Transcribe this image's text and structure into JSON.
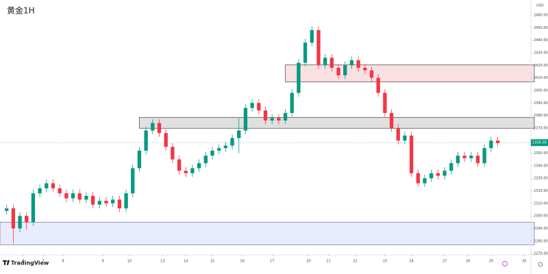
{
  "chart_data": {
    "type": "candlestick",
    "title": "黄金1H",
    "y_unit": "USD",
    "brand": "TradingView",
    "up_color": "#089981",
    "down_color": "#f23645",
    "grid": false,
    "xlim": [
      -1,
      79
    ],
    "ylim": [
      2269,
      2472
    ],
    "xticks": [
      {
        "value": 2.5,
        "label": "6"
      },
      {
        "value": 5.5,
        "label": "7"
      },
      {
        "value": 8.5,
        "label": "8"
      },
      {
        "value": 14.5,
        "label": "9"
      },
      {
        "value": 18.5,
        "label": "10"
      },
      {
        "value": 23.5,
        "label": "13"
      },
      {
        "value": 27,
        "label": "14"
      },
      {
        "value": 31,
        "label": "15"
      },
      {
        "value": 35.5,
        "label": "16"
      },
      {
        "value": 40,
        "label": "17"
      },
      {
        "value": 45.5,
        "label": "20"
      },
      {
        "value": 48.5,
        "label": "21"
      },
      {
        "value": 52.5,
        "label": "22"
      },
      {
        "value": 57,
        "label": "23"
      },
      {
        "value": 61,
        "label": "24"
      },
      {
        "value": 66,
        "label": "27"
      },
      {
        "value": 69.5,
        "label": "28"
      },
      {
        "value": 73,
        "label": "29"
      },
      {
        "value": 78,
        "label": "30"
      }
    ],
    "yticks": [
      {
        "value": 2270,
        "label": "2270.00"
      },
      {
        "value": 2280,
        "label": "2280.00"
      },
      {
        "value": 2290,
        "label": "2290.00"
      },
      {
        "value": 2300,
        "label": "2300.00"
      },
      {
        "value": 2310,
        "label": "2310.00"
      },
      {
        "value": 2320,
        "label": "2320.00"
      },
      {
        "value": 2330,
        "label": "2330.00"
      },
      {
        "value": 2340,
        "label": "2340.00"
      },
      {
        "value": 2350,
        "label": "2350.00"
      },
      {
        "value": 2370,
        "label": "2370.00"
      },
      {
        "value": 2380,
        "label": "2380.00"
      },
      {
        "value": 2390,
        "label": "2390.00"
      },
      {
        "value": 2400,
        "label": "2400.00"
      },
      {
        "value": 2410,
        "label": "2410.00"
      },
      {
        "value": 2420,
        "label": "2420.00"
      },
      {
        "value": 2430,
        "label": "2430.00"
      },
      {
        "value": 2440,
        "label": "2440.00"
      },
      {
        "value": 2450,
        "label": "2450.00"
      },
      {
        "value": 2460,
        "label": "2460.00"
      }
    ],
    "last_price": {
      "value": 2358.36,
      "label": "2358.36"
    },
    "zones": [
      {
        "from": 2277,
        "to": 2295,
        "start": -1,
        "color": "#e8ecfd",
        "border": "#7a7f99"
      },
      {
        "from": 2369.8,
        "to": 2378.5,
        "start": 20,
        "color": "#e0e0e0",
        "border": "#555555"
      },
      {
        "from": 2406.7,
        "to": 2420.3,
        "start": 42,
        "color": "#fbe0e3",
        "border": "#555555"
      }
    ],
    "open": [
      2304,
      2306,
      2290,
      2300,
      2295,
      2318,
      2322,
      2326,
      2322,
      2318,
      2314,
      2318,
      2313,
      2316,
      2309,
      2312,
      2310,
      2313,
      2306,
      2318,
      2338,
      2352,
      2368,
      2374,
      2366,
      2355,
      2345,
      2336,
      2334,
      2338,
      2342,
      2348,
      2352,
      2354,
      2356,
      2362,
      2368,
      2386,
      2390,
      2384,
      2376,
      2378,
      2376,
      2382,
      2398,
      2422,
      2438,
      2448,
      2420,
      2426,
      2418,
      2412,
      2420,
      2424,
      2418,
      2416,
      2410,
      2398,
      2382,
      2370,
      2360,
      2364,
      2334,
      2326,
      2330,
      2334,
      2332,
      2336,
      2342,
      2348,
      2346,
      2348,
      2342,
      2354,
      2360
    ],
    "high": [
      2309,
      2309,
      2303,
      2303,
      2321,
      2325,
      2329,
      2329,
      2325,
      2321,
      2321,
      2321,
      2319,
      2319,
      2315,
      2315,
      2316,
      2316,
      2321,
      2341,
      2355,
      2371,
      2377,
      2377,
      2369,
      2358,
      2348,
      2339,
      2341,
      2345,
      2351,
      2355,
      2357,
      2359,
      2365,
      2378,
      2389,
      2393,
      2393,
      2387,
      2381,
      2381,
      2385,
      2401,
      2425,
      2441,
      2451,
      2451,
      2429,
      2429,
      2421,
      2423,
      2427,
      2427,
      2421,
      2419,
      2413,
      2401,
      2385,
      2373,
      2367,
      2367,
      2337,
      2333,
      2337,
      2337,
      2339,
      2345,
      2351,
      2351,
      2351,
      2351,
      2357,
      2363,
      2363
    ],
    "low": [
      2301,
      2278,
      2287,
      2289,
      2292,
      2315,
      2319,
      2319,
      2315,
      2311,
      2311,
      2310,
      2310,
      2306,
      2306,
      2307,
      2307,
      2303,
      2303,
      2315,
      2335,
      2349,
      2365,
      2363,
      2352,
      2342,
      2333,
      2331,
      2331,
      2335,
      2339,
      2345,
      2349,
      2351,
      2353,
      2350,
      2365,
      2383,
      2381,
      2373,
      2373,
      2373,
      2373,
      2379,
      2395,
      2419,
      2435,
      2417,
      2417,
      2415,
      2409,
      2409,
      2417,
      2415,
      2413,
      2407,
      2395,
      2379,
      2367,
      2357,
      2357,
      2331,
      2323,
      2323,
      2327,
      2329,
      2329,
      2333,
      2339,
      2343,
      2343,
      2339,
      2339,
      2351,
      2355
    ],
    "close": [
      2306,
      2290,
      2300,
      2295,
      2318,
      2322,
      2326,
      2322,
      2318,
      2314,
      2318,
      2313,
      2316,
      2309,
      2312,
      2310,
      2313,
      2306,
      2318,
      2338,
      2352,
      2368,
      2374,
      2366,
      2355,
      2345,
      2336,
      2334,
      2338,
      2342,
      2348,
      2352,
      2354,
      2356,
      2362,
      2368,
      2386,
      2390,
      2384,
      2376,
      2378,
      2376,
      2382,
      2398,
      2422,
      2438,
      2448,
      2420,
      2426,
      2418,
      2412,
      2420,
      2424,
      2418,
      2416,
      2410,
      2398,
      2382,
      2370,
      2360,
      2364,
      2334,
      2326,
      2330,
      2334,
      2332,
      2336,
      2342,
      2348,
      2346,
      2348,
      2342,
      2354,
      2360,
      2358
    ]
  }
}
